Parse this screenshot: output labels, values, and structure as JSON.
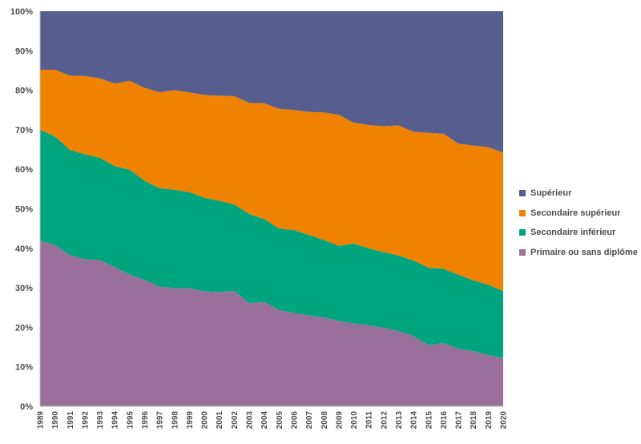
{
  "chart_data": {
    "type": "area",
    "stacked": true,
    "x": [
      "1989",
      "1990",
      "1991",
      "1992",
      "1993",
      "1994",
      "1995",
      "1996",
      "1997",
      "1998",
      "1999",
      "2000",
      "2001",
      "2002",
      "2003",
      "2004",
      "2005",
      "2006",
      "2007",
      "2008",
      "2009",
      "2010",
      "2011",
      "2012",
      "2013",
      "2014",
      "2015",
      "2016",
      "2017",
      "2018",
      "2019",
      "2020"
    ],
    "ylim": [
      0,
      100
    ],
    "yticks": [
      "0%",
      "10%",
      "20%",
      "30%",
      "40%",
      "50%",
      "60%",
      "70%",
      "80%",
      "90%",
      "100%"
    ],
    "ytick_values": [
      0,
      10,
      20,
      30,
      40,
      50,
      60,
      70,
      80,
      90,
      100
    ],
    "legend_position": "right",
    "grid": false,
    "series": [
      {
        "name": "Primaire ou sans diplôme",
        "color": "#98709b",
        "values": [
          41.9,
          40.8,
          38.3,
          37.2,
          37.0,
          35.2,
          33.3,
          32.0,
          30.3,
          29.9,
          29.9,
          29.1,
          28.9,
          29.2,
          26.1,
          26.4,
          24.4,
          23.6,
          23.0,
          22.5,
          21.6,
          21.0,
          20.5,
          19.9,
          19.0,
          17.8,
          15.5,
          16.0,
          14.6,
          14.0,
          13.0,
          12.2
        ]
      },
      {
        "name": "Secondaire inférieur",
        "color": "#00a47f",
        "values": [
          28.1,
          27.5,
          26.6,
          26.6,
          25.9,
          25.6,
          26.6,
          25.1,
          24.9,
          24.9,
          24.3,
          23.7,
          23.1,
          21.9,
          22.6,
          21.0,
          20.6,
          21.0,
          20.4,
          19.6,
          19.0,
          20.2,
          19.5,
          19.1,
          19.2,
          19.1,
          19.6,
          18.8,
          18.7,
          17.9,
          17.8,
          17.0
        ]
      },
      {
        "name": "Secondaire supérieur",
        "color": "#ef8200",
        "values": [
          15.2,
          16.9,
          18.8,
          19.8,
          20.1,
          20.9,
          22.5,
          23.5,
          24.3,
          25.2,
          25.3,
          26.0,
          26.6,
          27.4,
          28.1,
          29.3,
          30.3,
          30.4,
          31.1,
          32.3,
          33.2,
          30.6,
          31.2,
          31.9,
          32.9,
          32.6,
          34.1,
          34.2,
          33.2,
          34.1,
          34.8,
          35.0
        ]
      },
      {
        "name": "Supérieur",
        "color": "#565e8f",
        "values": [
          14.8,
          14.8,
          16.3,
          16.4,
          17.0,
          18.3,
          17.6,
          19.4,
          20.5,
          20.0,
          20.5,
          21.2,
          21.4,
          21.5,
          23.2,
          23.3,
          24.7,
          25.0,
          25.5,
          25.6,
          26.2,
          28.2,
          28.8,
          29.1,
          28.9,
          30.5,
          30.8,
          31.0,
          33.5,
          34.0,
          34.4,
          35.8
        ]
      }
    ]
  }
}
